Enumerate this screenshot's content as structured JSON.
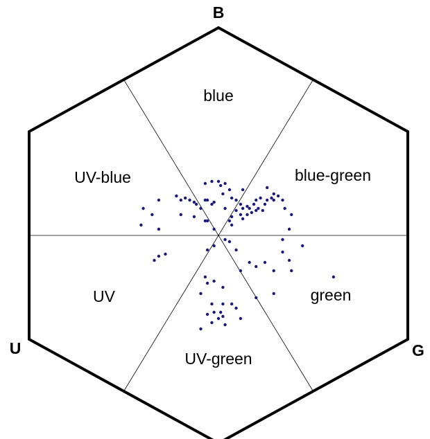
{
  "chart_data": {
    "type": "scatter",
    "vertex_labels": [
      "B",
      "G",
      "U"
    ],
    "region_labels": [
      "blue",
      "UV-blue",
      "blue-green",
      "UV",
      "green",
      "UV-green"
    ],
    "xlim": [
      -0.95,
      0.95
    ],
    "ylim": [
      -0.98,
      1.05
    ],
    "x": [
      -0.19,
      -0.17,
      -0.15,
      -0.13,
      -0.11,
      -0.1,
      -0.08,
      -0.06,
      -0.05,
      -0.03,
      -0.02,
      0.0,
      0.01,
      0.02,
      -0.06,
      -0.03,
      0.03,
      0.05,
      0.06,
      0.08,
      0.1,
      0.11,
      0.13,
      0.14,
      0.16,
      0.17,
      0.19,
      0.21,
      0.22,
      0.24,
      0.25,
      0.27,
      0.29,
      0.3,
      0.1,
      0.08,
      0.11,
      0.13,
      0.15,
      0.17,
      0.18,
      0.2,
      0.06,
      0.05,
      0.03,
      -0.27,
      -0.3,
      -0.34,
      -0.35,
      -0.27,
      -0.17,
      -0.11,
      -0.06,
      -0.05,
      -0.02,
      0.06,
      0.11,
      0.22,
      0.25,
      0.32,
      0.29,
      0.33,
      -0.27,
      -0.24,
      -0.29,
      -0.02,
      -0.05,
      0.05,
      0.08,
      0.1,
      0.14,
      0.17,
      0.21,
      0.25,
      0.29,
      0.32,
      0.33,
      0.38,
      0.52,
      0.17,
      0.25,
      0.03,
      -0.06,
      -0.05,
      -0.02,
      0.02,
      -0.08,
      -0.03,
      -0.02,
      -0.05,
      0.01,
      0.02,
      0.06,
      0.08,
      0.1,
      0.03,
      -0.08,
      0.0,
      0.02,
      -0.03
    ],
    "series": [
      {
        "color": "#1a1a7a",
        "values": [
          0.19,
          0.17,
          0.18,
          0.17,
          0.16,
          0.15,
          0.13,
          0.17,
          0.17,
          0.15,
          0.16,
          0.26,
          0.24,
          0.2,
          0.25,
          0.26,
          0.25,
          0.22,
          0.18,
          0.17,
          0.15,
          0.13,
          0.14,
          0.13,
          0.15,
          0.17,
          0.18,
          0.15,
          0.17,
          0.18,
          0.17,
          0.19,
          0.17,
          0.13,
          0.1,
          0.12,
          0.08,
          0.1,
          0.11,
          0.12,
          0.13,
          0.12,
          0.09,
          0.07,
          0.13,
          0.17,
          0.1,
          0.13,
          0.05,
          0.03,
          0.1,
          0.09,
          0.07,
          0.07,
          0.03,
          0.05,
          0.22,
          0.23,
          0.2,
          0.03,
          -0.02,
          0.1,
          -0.1,
          -0.09,
          -0.12,
          -0.05,
          -0.07,
          -0.03,
          -0.07,
          -0.17,
          -0.13,
          -0.15,
          -0.13,
          -0.17,
          -0.08,
          -0.12,
          -0.17,
          -0.05,
          -0.2,
          -0.3,
          -0.28,
          -0.02,
          -0.2,
          -0.23,
          -0.22,
          -0.25,
          -0.28,
          -0.33,
          -0.37,
          -0.38,
          -0.37,
          -0.39,
          -0.33,
          -0.35,
          -0.4,
          -0.43,
          -0.45,
          -0.4,
          -0.33,
          -0.42
        ]
      }
    ]
  }
}
